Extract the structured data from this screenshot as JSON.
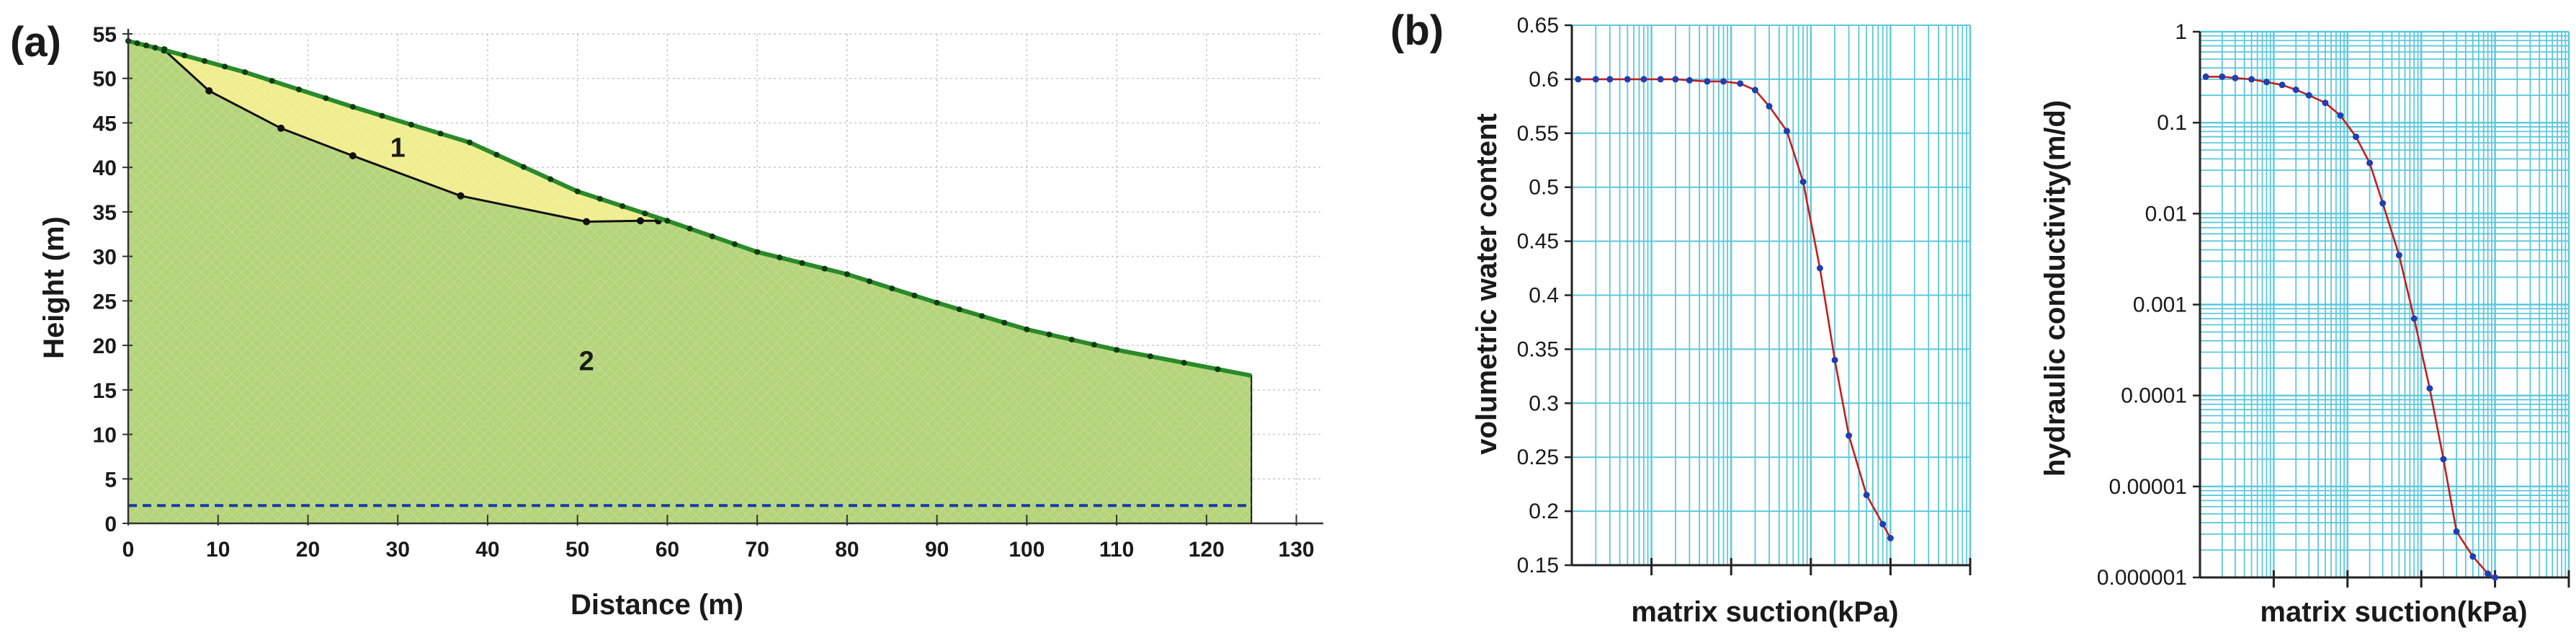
{
  "panel_labels": {
    "a": "(a)",
    "b": "(b)"
  },
  "chart_data": [
    {
      "id": "slope",
      "type": "area",
      "xlabel": "Distance (m)",
      "ylabel": "Height (m)",
      "xlim": [
        0,
        133
      ],
      "ylim": [
        0,
        55
      ],
      "xticks": [
        0,
        10,
        20,
        30,
        40,
        50,
        60,
        70,
        80,
        90,
        100,
        110,
        120,
        130
      ],
      "yticks": [
        0,
        5,
        10,
        15,
        20,
        25,
        30,
        35,
        40,
        45,
        50,
        55
      ],
      "surface": [
        [
          0,
          54.2
        ],
        [
          4,
          53.2
        ],
        [
          13,
          50.7
        ],
        [
          25,
          46.8
        ],
        [
          38,
          42.8
        ],
        [
          50,
          37.3
        ],
        [
          60,
          34.0
        ],
        [
          70,
          30.5
        ],
        [
          80,
          28.0
        ],
        [
          90,
          24.8
        ],
        [
          100,
          21.8
        ],
        [
          110,
          19.5
        ],
        [
          125,
          16.6
        ]
      ],
      "slip_surface": [
        [
          4,
          53.2
        ],
        [
          9,
          48.6
        ],
        [
          17,
          44.4
        ],
        [
          25,
          41.3
        ],
        [
          37,
          36.8
        ],
        [
          51,
          33.9
        ],
        [
          57,
          34.0
        ],
        [
          59,
          34.0
        ]
      ],
      "water_table": 2,
      "regions": [
        {
          "label": "1",
          "x": 30,
          "y": 41.2,
          "color": "#f0ed8e"
        },
        {
          "label": "2",
          "x": 51,
          "y": 17.2,
          "color": "#b4d47a"
        }
      ],
      "colors": {
        "surface": "#2a8a2a",
        "slip": "#111111",
        "water": "#1a3aa8",
        "grid": "#c9c9c9"
      }
    },
    {
      "id": "swcc",
      "type": "line",
      "xlabel": "matrix suction(kPa)",
      "ylabel": "volumetric water content",
      "xscale": "log",
      "xlim": [
        0.01,
        1000
      ],
      "ylim": [
        0.15,
        0.65
      ],
      "yticks": [
        "0.15",
        "0.2",
        "0.25",
        "0.3",
        "0.35",
        "0.4",
        "0.45",
        "0.5",
        "0.55",
        "0.6",
        "0.65"
      ],
      "x": [
        0.012,
        0.02,
        0.03,
        0.05,
        0.08,
        0.13,
        0.2,
        0.3,
        0.5,
        0.8,
        1.3,
        2,
        3,
        5,
        8,
        13,
        20,
        30,
        50,
        80,
        100
      ],
      "y": [
        0.6,
        0.6,
        0.6,
        0.6,
        0.6,
        0.6,
        0.6,
        0.599,
        0.598,
        0.598,
        0.596,
        0.59,
        0.575,
        0.552,
        0.505,
        0.425,
        0.34,
        0.27,
        0.215,
        0.188,
        0.175
      ],
      "colors": {
        "line": "#c41e1e",
        "marker": "#1f3fb0",
        "grid": "#5cc8dc"
      }
    },
    {
      "id": "hcf",
      "type": "line",
      "xlabel": "matrix suction(kPa)",
      "ylabel": "hydraulic conductivity(m/d)",
      "xscale": "log",
      "yscale": "log",
      "xlim": [
        0.01,
        1000
      ],
      "ylim": [
        1e-06,
        1
      ],
      "yticks": [
        "0.000001",
        "0.00001",
        "0.0001",
        "0.001",
        "0.01",
        "0.1",
        "1"
      ],
      "x": [
        0.012,
        0.02,
        0.03,
        0.05,
        0.08,
        0.13,
        0.2,
        0.3,
        0.5,
        0.8,
        1.3,
        2,
        3,
        5,
        8,
        13,
        20,
        30,
        50,
        80,
        100
      ],
      "y": [
        0.32,
        0.32,
        0.31,
        0.3,
        0.28,
        0.26,
        0.23,
        0.2,
        0.165,
        0.12,
        0.07,
        0.036,
        0.013,
        0.0035,
        0.0007,
        0.00012,
        2e-05,
        3.2e-06,
        1.7e-06,
        1.1e-06,
        1e-06
      ],
      "colors": {
        "line": "#c41e1e",
        "marker": "#1f3fb0",
        "grid": "#5cc8dc"
      }
    }
  ]
}
